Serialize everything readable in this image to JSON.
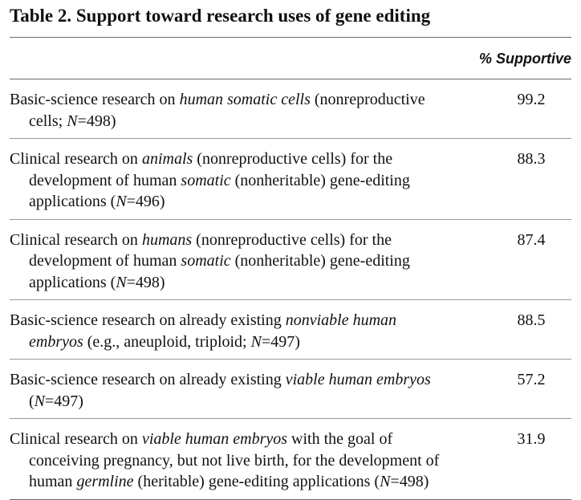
{
  "table": {
    "caption": "Table 2.  Support toward research uses of gene editing",
    "column_header": "% Supportive",
    "rows": [
      {
        "label": [
          {
            "t": "Basic-science research on "
          },
          {
            "t": "human somatic cells",
            "i": true
          },
          {
            "t": " (nonreproductive cells; "
          },
          {
            "t": "N",
            "i": true
          },
          {
            "t": "=498)"
          }
        ],
        "value": "99.2"
      },
      {
        "label": [
          {
            "t": "Clinical research on "
          },
          {
            "t": "animals",
            "i": true
          },
          {
            "t": " (nonreproductive cells) for the development of human "
          },
          {
            "t": "somatic",
            "i": true
          },
          {
            "t": " (nonheritable) gene-editing applications ("
          },
          {
            "t": "N",
            "i": true
          },
          {
            "t": "=496)"
          }
        ],
        "value": "88.3"
      },
      {
        "label": [
          {
            "t": "Clinical research on "
          },
          {
            "t": "humans",
            "i": true
          },
          {
            "t": " (nonreproductive cells) for the development of human "
          },
          {
            "t": "somatic",
            "i": true
          },
          {
            "t": " (nonheritable) gene-editing applications ("
          },
          {
            "t": "N",
            "i": true
          },
          {
            "t": "=498)"
          }
        ],
        "value": "87.4"
      },
      {
        "label": [
          {
            "t": "Basic-science research on already existing "
          },
          {
            "t": "nonviable human embryos",
            "i": true
          },
          {
            "t": " (e.g., aneuploid, triploid; "
          },
          {
            "t": "N",
            "i": true
          },
          {
            "t": "=497)"
          }
        ],
        "value": "88.5"
      },
      {
        "label": [
          {
            "t": "Basic-science research on already existing "
          },
          {
            "t": "viable human embryos",
            "i": true
          },
          {
            "t": " ("
          },
          {
            "t": "N",
            "i": true
          },
          {
            "t": "=497)"
          }
        ],
        "value": "57.2"
      },
      {
        "label": [
          {
            "t": "Clinical research on "
          },
          {
            "t": "viable human embryos",
            "i": true
          },
          {
            "t": " with the goal of conceiving pregnancy, but not live birth, for the development of human "
          },
          {
            "t": "germline",
            "i": true
          },
          {
            "t": " (heritable) gene-editing applications ("
          },
          {
            "t": "N",
            "i": true
          },
          {
            "t": "=498)"
          }
        ],
        "value": "31.9"
      }
    ]
  }
}
